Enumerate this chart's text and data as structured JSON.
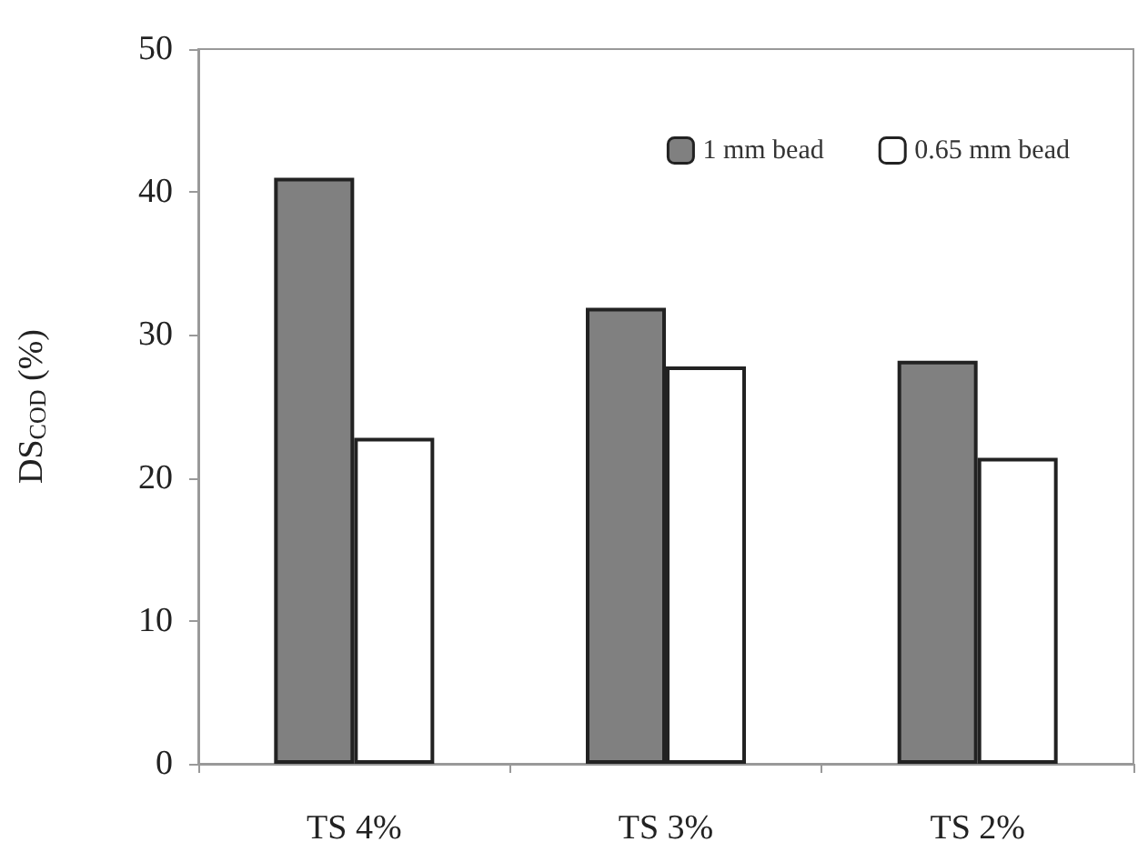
{
  "chart_data": {
    "type": "bar",
    "ylabel": "DS$_{COD}$ (%)",
    "categories": [
      "TS 4%",
      "TS 3%",
      "TS 2%"
    ],
    "series": [
      {
        "name": "1 mm bead",
        "color": "#808080",
        "values": [
          41.0,
          31.9,
          28.2
        ]
      },
      {
        "name": "0.65 mm bead",
        "color": "#ffffff",
        "values": [
          22.8,
          27.8,
          21.4
        ]
      }
    ],
    "ylim": [
      0,
      50
    ],
    "yticks": [
      0,
      10,
      20,
      30,
      40,
      50
    ],
    "grid": false,
    "legend": "top right"
  }
}
